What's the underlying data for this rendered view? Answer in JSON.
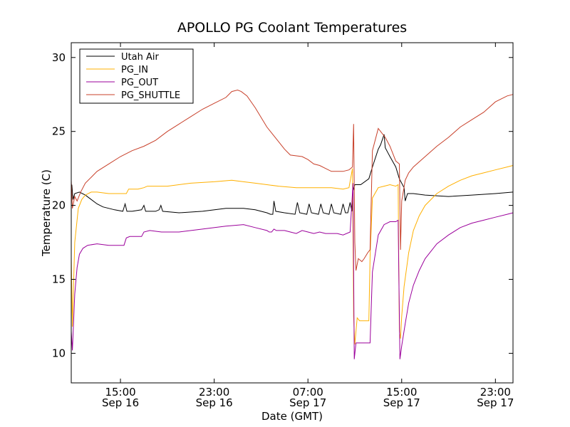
{
  "chart_data": {
    "type": "line",
    "title": "APOLLO PG Coolant Temperatures",
    "xlabel": "Date (GMT)",
    "ylabel": "Temperature (C)",
    "xlim": [
      10.8,
      48.5
    ],
    "ylim": [
      8,
      31
    ],
    "yticks": [
      10,
      15,
      20,
      25,
      30
    ],
    "xticks": [
      {
        "x": 15,
        "line1": "15:00",
        "line2": "Sep 16"
      },
      {
        "x": 23,
        "line1": "23:00",
        "line2": "Sep 16"
      },
      {
        "x": 31,
        "line1": "07:00",
        "line2": "Sep 17"
      },
      {
        "x": 39,
        "line1": "15:00",
        "line2": "Sep 17"
      },
      {
        "x": 47,
        "line1": "23:00",
        "line2": "Sep 17"
      }
    ],
    "x_units": "hours since Sep 16 00:00 GMT",
    "legend_position": "upper-left",
    "series": [
      {
        "name": "Utah Air",
        "color": "#000000",
        "points": [
          [
            10.8,
            21.1
          ],
          [
            10.85,
            21.4
          ],
          [
            10.95,
            20.4
          ],
          [
            11.1,
            20.8
          ],
          [
            11.5,
            20.9
          ],
          [
            12,
            20.7
          ],
          [
            12.5,
            20.4
          ],
          [
            13,
            20.1
          ],
          [
            13.5,
            19.9
          ],
          [
            14.5,
            19.7
          ],
          [
            15.2,
            19.6
          ],
          [
            15.4,
            20.1
          ],
          [
            15.55,
            19.6
          ],
          [
            16,
            19.6
          ],
          [
            16.8,
            19.7
          ],
          [
            17,
            20.0
          ],
          [
            17.15,
            19.6
          ],
          [
            18,
            19.6
          ],
          [
            18.3,
            19.7
          ],
          [
            18.45,
            20.0
          ],
          [
            18.6,
            19.6
          ],
          [
            20,
            19.5
          ],
          [
            22,
            19.6
          ],
          [
            24,
            19.8
          ],
          [
            25.5,
            19.8
          ],
          [
            26.5,
            19.7
          ],
          [
            27.5,
            19.5
          ],
          [
            27.8,
            19.4
          ],
          [
            28,
            19.4
          ],
          [
            28.1,
            20.3
          ],
          [
            28.25,
            19.6
          ],
          [
            29,
            19.5
          ],
          [
            29.9,
            19.4
          ],
          [
            30.1,
            20.2
          ],
          [
            30.3,
            19.5
          ],
          [
            30.9,
            19.4
          ],
          [
            31.1,
            20.1
          ],
          [
            31.3,
            19.5
          ],
          [
            31.9,
            19.4
          ],
          [
            32.1,
            20.1
          ],
          [
            32.3,
            19.5
          ],
          [
            32.8,
            19.4
          ],
          [
            33,
            20.1
          ],
          [
            33.2,
            19.5
          ],
          [
            33.8,
            19.4
          ],
          [
            34,
            20.1
          ],
          [
            34.2,
            19.5
          ],
          [
            34.4,
            19.5
          ],
          [
            34.6,
            20.2
          ],
          [
            34.75,
            19.6
          ],
          [
            34.85,
            21.0
          ],
          [
            35,
            21.4
          ],
          [
            35.5,
            21.4
          ],
          [
            36.2,
            21.8
          ],
          [
            36.5,
            22.6
          ],
          [
            37,
            23.8
          ],
          [
            37.2,
            24.1
          ],
          [
            37.5,
            24.8
          ],
          [
            37.6,
            23.9
          ],
          [
            37.8,
            23.6
          ],
          [
            38,
            23.3
          ],
          [
            38.5,
            22.6
          ],
          [
            38.8,
            21.8
          ],
          [
            39.2,
            21.2
          ],
          [
            39.3,
            20.3
          ],
          [
            39.5,
            20.8
          ],
          [
            40,
            20.8
          ],
          [
            41,
            20.7
          ],
          [
            43,
            20.6
          ],
          [
            45,
            20.7
          ],
          [
            47,
            20.8
          ],
          [
            48.5,
            20.9
          ]
        ]
      },
      {
        "name": "PG_IN",
        "color": "#ffb000",
        "points": [
          [
            10.8,
            16.5
          ],
          [
            10.9,
            11.8
          ],
          [
            11.1,
            17.5
          ],
          [
            11.4,
            19.8
          ],
          [
            11.7,
            20.4
          ],
          [
            12,
            20.7
          ],
          [
            12.5,
            20.9
          ],
          [
            13,
            20.9
          ],
          [
            14,
            20.8
          ],
          [
            15,
            20.8
          ],
          [
            15.5,
            20.8
          ],
          [
            15.7,
            21.1
          ],
          [
            16.5,
            21.1
          ],
          [
            17,
            21.2
          ],
          [
            17.3,
            21.3
          ],
          [
            18,
            21.3
          ],
          [
            19,
            21.3
          ],
          [
            21,
            21.5
          ],
          [
            23,
            21.6
          ],
          [
            24.5,
            21.7
          ],
          [
            25.5,
            21.6
          ],
          [
            26.5,
            21.5
          ],
          [
            27.5,
            21.4
          ],
          [
            28.5,
            21.3
          ],
          [
            30,
            21.2
          ],
          [
            31,
            21.2
          ],
          [
            32,
            21.2
          ],
          [
            33,
            21.2
          ],
          [
            34,
            21.1
          ],
          [
            34.5,
            21.2
          ],
          [
            34.8,
            22.5
          ],
          [
            34.9,
            12.5
          ],
          [
            35,
            10.6
          ],
          [
            35.2,
            12.4
          ],
          [
            35.4,
            12.2
          ],
          [
            36,
            12.2
          ],
          [
            36.2,
            12.2
          ],
          [
            36.3,
            16.5
          ],
          [
            36.5,
            20.5
          ],
          [
            37,
            21.2
          ],
          [
            37.5,
            21.3
          ],
          [
            38,
            21.4
          ],
          [
            38.5,
            21.3
          ],
          [
            38.7,
            21.4
          ],
          [
            38.8,
            11.5
          ],
          [
            38.9,
            11.0
          ],
          [
            39,
            12.5
          ],
          [
            39.2,
            14.5
          ],
          [
            39.6,
            16.8
          ],
          [
            40,
            18.3
          ],
          [
            40.5,
            19.3
          ],
          [
            41,
            20.0
          ],
          [
            42,
            20.8
          ],
          [
            43,
            21.3
          ],
          [
            44,
            21.7
          ],
          [
            45,
            22.0
          ],
          [
            46,
            22.2
          ],
          [
            47,
            22.4
          ],
          [
            48,
            22.6
          ],
          [
            48.5,
            22.7
          ]
        ]
      },
      {
        "name": "PG_OUT",
        "color": "#9b009b",
        "points": [
          [
            10.8,
            11.5
          ],
          [
            10.9,
            10.2
          ],
          [
            11.1,
            14.0
          ],
          [
            11.3,
            15.8
          ],
          [
            11.5,
            16.7
          ],
          [
            11.8,
            17.1
          ],
          [
            12.2,
            17.3
          ],
          [
            13,
            17.4
          ],
          [
            14,
            17.3
          ],
          [
            15,
            17.3
          ],
          [
            15.3,
            17.3
          ],
          [
            15.5,
            17.8
          ],
          [
            15.8,
            17.9
          ],
          [
            16.8,
            17.9
          ],
          [
            17,
            18.2
          ],
          [
            17.5,
            18.3
          ],
          [
            18.5,
            18.2
          ],
          [
            20,
            18.2
          ],
          [
            22,
            18.4
          ],
          [
            24,
            18.6
          ],
          [
            25.5,
            18.7
          ],
          [
            26.5,
            18.5
          ],
          [
            27.5,
            18.3
          ],
          [
            27.7,
            18.2
          ],
          [
            27.9,
            18.2
          ],
          [
            28.1,
            18.4
          ],
          [
            28.3,
            18.3
          ],
          [
            29,
            18.3
          ],
          [
            29.5,
            18.2
          ],
          [
            30,
            18.1
          ],
          [
            30.5,
            18.3
          ],
          [
            31,
            18.2
          ],
          [
            31.5,
            18.1
          ],
          [
            32,
            18.2
          ],
          [
            32.5,
            18.1
          ],
          [
            33,
            18.1
          ],
          [
            33.5,
            18.1
          ],
          [
            34,
            18.0
          ],
          [
            34.6,
            18.2
          ],
          [
            34.85,
            21.5
          ],
          [
            34.95,
            9.6
          ],
          [
            35.1,
            10.7
          ],
          [
            36.3,
            10.7
          ],
          [
            36.5,
            15.5
          ],
          [
            37,
            18.0
          ],
          [
            37.5,
            18.7
          ],
          [
            38,
            18.9
          ],
          [
            38.5,
            18.9
          ],
          [
            38.7,
            19.0
          ],
          [
            38.85,
            9.6
          ],
          [
            39,
            10.5
          ],
          [
            39.3,
            12.0
          ],
          [
            39.6,
            13.4
          ],
          [
            40,
            14.6
          ],
          [
            40.5,
            15.6
          ],
          [
            41,
            16.4
          ],
          [
            42,
            17.4
          ],
          [
            43,
            18.0
          ],
          [
            44,
            18.5
          ],
          [
            45,
            18.8
          ],
          [
            46,
            19.0
          ],
          [
            47,
            19.2
          ],
          [
            48,
            19.4
          ],
          [
            48.5,
            19.5
          ]
        ]
      },
      {
        "name": "PG_SHUTTLE",
        "color": "#c8402a",
        "points": [
          [
            10.8,
            21.7
          ],
          [
            10.9,
            19.8
          ],
          [
            11.1,
            20.6
          ],
          [
            11.3,
            20.3
          ],
          [
            11.6,
            20.9
          ],
          [
            12,
            21.5
          ],
          [
            12.5,
            21.9
          ],
          [
            13,
            22.3
          ],
          [
            14,
            22.8
          ],
          [
            15,
            23.3
          ],
          [
            16,
            23.7
          ],
          [
            17,
            24.0
          ],
          [
            18,
            24.4
          ],
          [
            19,
            25.0
          ],
          [
            20,
            25.5
          ],
          [
            21,
            26.0
          ],
          [
            22,
            26.5
          ],
          [
            23,
            26.9
          ],
          [
            24,
            27.3
          ],
          [
            24.5,
            27.7
          ],
          [
            25,
            27.8
          ],
          [
            25.3,
            27.7
          ],
          [
            25.8,
            27.4
          ],
          [
            26.5,
            26.6
          ],
          [
            27.5,
            25.3
          ],
          [
            28.5,
            24.3
          ],
          [
            29,
            23.8
          ],
          [
            29.5,
            23.4
          ],
          [
            30.5,
            23.3
          ],
          [
            31,
            23.1
          ],
          [
            31.5,
            22.8
          ],
          [
            32,
            22.7
          ],
          [
            32.5,
            22.5
          ],
          [
            33,
            22.3
          ],
          [
            33.5,
            22.3
          ],
          [
            34,
            22.3
          ],
          [
            34.5,
            22.4
          ],
          [
            34.8,
            22.6
          ],
          [
            34.9,
            25.5
          ],
          [
            35,
            17.5
          ],
          [
            35.1,
            15.6
          ],
          [
            35.3,
            16.4
          ],
          [
            35.6,
            16.2
          ],
          [
            35.8,
            16.4
          ],
          [
            36.1,
            16.8
          ],
          [
            36.3,
            17.0
          ],
          [
            36.5,
            23.7
          ],
          [
            37,
            25.2
          ],
          [
            37.3,
            24.9
          ],
          [
            37.6,
            24.6
          ],
          [
            38,
            24.0
          ],
          [
            38.5,
            23.0
          ],
          [
            38.8,
            22.8
          ],
          [
            38.9,
            17.0
          ],
          [
            39,
            20.3
          ],
          [
            39.3,
            21.7
          ],
          [
            39.6,
            22.2
          ],
          [
            40,
            22.6
          ],
          [
            41,
            23.3
          ],
          [
            42,
            24.0
          ],
          [
            43,
            24.6
          ],
          [
            44,
            25.3
          ],
          [
            45,
            25.8
          ],
          [
            46,
            26.3
          ],
          [
            47,
            27.0
          ],
          [
            48,
            27.4
          ],
          [
            48.5,
            27.5
          ]
        ]
      }
    ]
  }
}
